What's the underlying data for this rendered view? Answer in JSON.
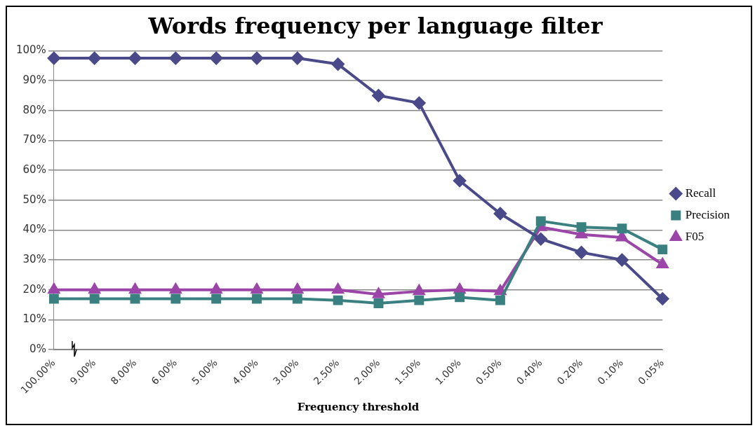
{
  "chart_data": {
    "type": "line",
    "title": "Words frequency per language filter",
    "xlabel": "Frequency threshold",
    "categories": [
      "100.00%",
      "9.00%",
      "8.00%",
      "6.00%",
      "5.00%",
      "4.00%",
      "3.00%",
      "2.50%",
      "2.00%",
      "1.50%",
      "1.00%",
      "0.50%",
      "0.40%",
      "0.20%",
      "0.10%",
      "0.05%"
    ],
    "series": [
      {
        "name": "Recall",
        "color": "#4a4a8a",
        "marker": "diamond",
        "values": [
          97.5,
          97.5,
          97.5,
          97.5,
          97.5,
          97.5,
          97.5,
          95.5,
          85,
          82.5,
          56.5,
          45.5,
          37,
          32.5,
          30,
          17
        ]
      },
      {
        "name": "Precision",
        "color": "#3a8080",
        "marker": "square",
        "values": [
          17,
          17,
          17,
          17,
          17,
          17,
          17,
          16.5,
          15.5,
          16.5,
          17.5,
          16.5,
          43,
          41,
          40.5,
          33.5
        ]
      },
      {
        "name": "F05",
        "color": "#9b45a8",
        "marker": "triangle",
        "values": [
          20,
          20,
          20,
          20,
          20,
          20,
          20,
          20,
          18.5,
          19.5,
          20,
          19.5,
          41,
          38.5,
          37.5,
          28.5
        ]
      }
    ],
    "ylim": [
      0,
      100
    ],
    "yticks": [
      {
        "value": 0,
        "label": "0%"
      },
      {
        "value": 10,
        "label": "10%"
      },
      {
        "value": 20,
        "label": "20%"
      },
      {
        "value": 30,
        "label": "30%"
      },
      {
        "value": 40,
        "label": "40%"
      },
      {
        "value": 50,
        "label": "50%"
      },
      {
        "value": 60,
        "label": "60%"
      },
      {
        "value": 70,
        "label": "70%"
      },
      {
        "value": 80,
        "label": "80%"
      },
      {
        "value": 90,
        "label": "90%"
      },
      {
        "value": 100,
        "label": "100%"
      }
    ],
    "grid": "y",
    "legend": "right",
    "line_style": "solid"
  }
}
